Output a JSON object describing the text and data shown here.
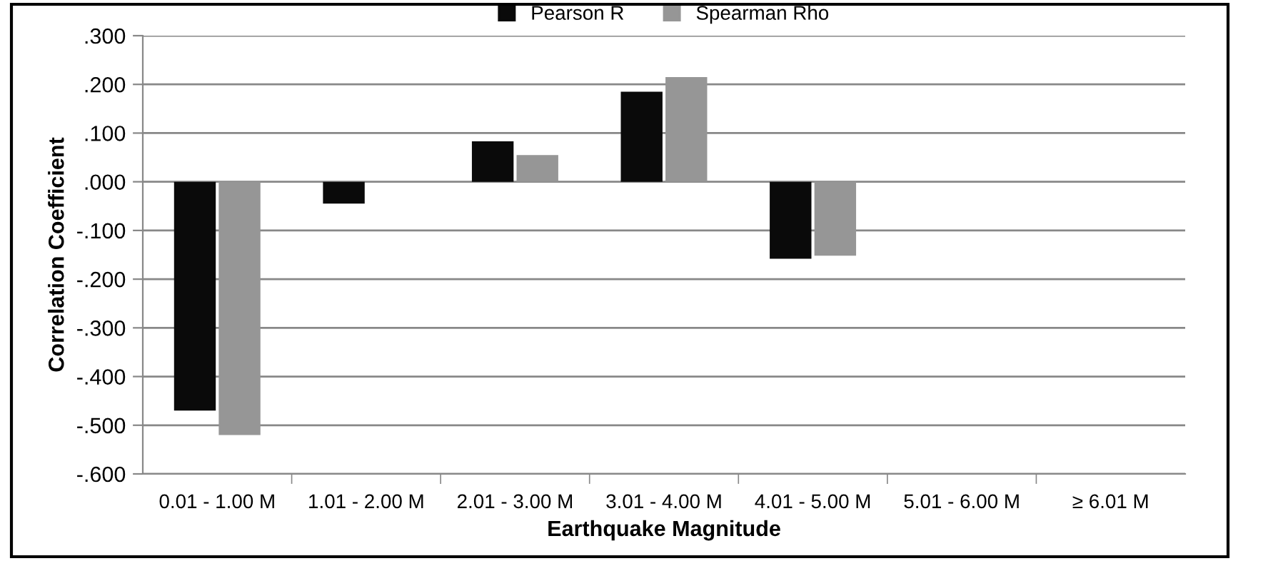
{
  "chart_data": {
    "type": "bar",
    "xlabel": "Earthquake Magnitude",
    "ylabel": "Correlation Coefficient",
    "categories": [
      "0.01 - 1.00 M",
      "1.01 - 2.00 M",
      "2.01 - 3.00 M",
      "3.01 - 4.00 M",
      "4.01 - 5.00 M",
      "5.01 - 6.00 M",
      "≥ 6.01 M"
    ],
    "series": [
      {
        "name": "Pearson R",
        "color": "#0a0a0a",
        "values": [
          -0.47,
          -0.045,
          0.083,
          0.185,
          -0.158,
          null,
          null
        ]
      },
      {
        "name": "Spearman Rho",
        "color": "#969696",
        "values": [
          -0.52,
          null,
          0.055,
          0.215,
          -0.152,
          null,
          null
        ]
      }
    ],
    "ylim": [
      -0.6,
      0.3
    ],
    "yticks": [
      {
        "value": -0.6,
        "label": "-.600"
      },
      {
        "value": -0.5,
        "label": "-.500"
      },
      {
        "value": -0.4,
        "label": "-.400"
      },
      {
        "value": -0.3,
        "label": "-.300"
      },
      {
        "value": -0.2,
        "label": "-.200"
      },
      {
        "value": -0.1,
        "label": "-.100"
      },
      {
        "value": 0,
        "label": ".000"
      },
      {
        "value": 0.1,
        "label": ".100"
      },
      {
        "value": 0.2,
        "label": ".200"
      },
      {
        "value": 0.3,
        "label": ".300"
      }
    ],
    "grid": "y",
    "legend": "top"
  }
}
